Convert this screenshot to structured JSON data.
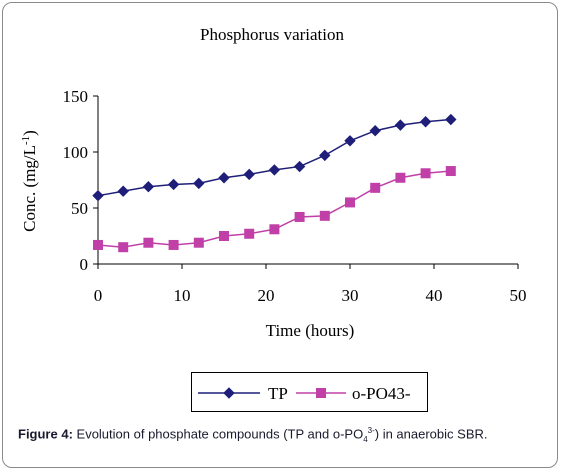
{
  "chart_data": {
    "type": "line",
    "title": "Phosphorus variation",
    "xlabel": "Time (hours)",
    "ylabel_main": "Conc. (mg/L",
    "ylabel_sup": "-1",
    "ylabel_end": ")",
    "xlim": [
      0,
      50
    ],
    "ylim": [
      0,
      150
    ],
    "xticks": [
      "0",
      "10",
      "20",
      "30",
      "40",
      "50"
    ],
    "yticks": [
      "0",
      "50",
      "100",
      "150"
    ],
    "grid": false,
    "legend_position": "bottom",
    "series": [
      {
        "name": "TP",
        "color": "#1f1f7a",
        "marker": "diamond",
        "x": [
          0,
          3,
          6,
          9,
          12,
          15,
          18,
          21,
          24,
          27,
          30,
          33,
          36,
          39,
          42
        ],
        "y": [
          61,
          65,
          69,
          71,
          72,
          77,
          80,
          84,
          87,
          97,
          110,
          119,
          124,
          127,
          129
        ]
      },
      {
        "name": "o-PO43-",
        "color": "#c040a8",
        "marker": "square",
        "x": [
          0,
          3,
          6,
          9,
          12,
          15,
          18,
          21,
          24,
          27,
          30,
          33,
          36,
          39,
          42
        ],
        "y": [
          17,
          15,
          19,
          17,
          19,
          25,
          27,
          31,
          42,
          43,
          55,
          68,
          77,
          81,
          83
        ]
      }
    ]
  },
  "caption": {
    "label": "Figure 4:",
    "text_part1": " Evolution of phosphate compounds (TP and o-PO",
    "sub": "4",
    "sup": "3-",
    "text_part2": ") in anaerobic SBR."
  }
}
